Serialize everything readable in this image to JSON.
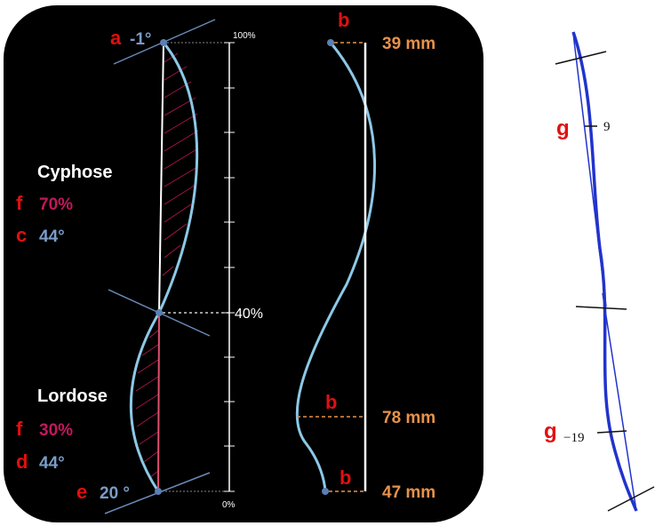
{
  "left_panel": {
    "letters": {
      "a": "a",
      "b": "b",
      "c": "c",
      "d": "d",
      "e": "e",
      "f": "f"
    },
    "top_angle": "-1°",
    "bottom_angle": "20 °",
    "scale_top": "100%",
    "scale_mid": "40%",
    "scale_bottom": "0%",
    "cyphose": {
      "label": "Cyphose",
      "percent": "70%",
      "angle": "44°"
    },
    "lordose": {
      "label": "Lordose",
      "percent": "30%",
      "angle": "44°"
    },
    "distances": {
      "top": "39 mm",
      "middle": "78 mm",
      "bottom": "47 mm"
    }
  },
  "right_panel": {
    "letter": "g",
    "upper_value": "9",
    "lower_value": "−19"
  },
  "colors": {
    "background": "#000000",
    "curve": "#8cc8e6",
    "hatch": "#c2185b",
    "letter_red": "#e01010",
    "angle_blue": "#7a9cc8",
    "distance_orange": "#e8924a",
    "percent_red": "#c2185b",
    "spine_blue": "#2233cc"
  }
}
